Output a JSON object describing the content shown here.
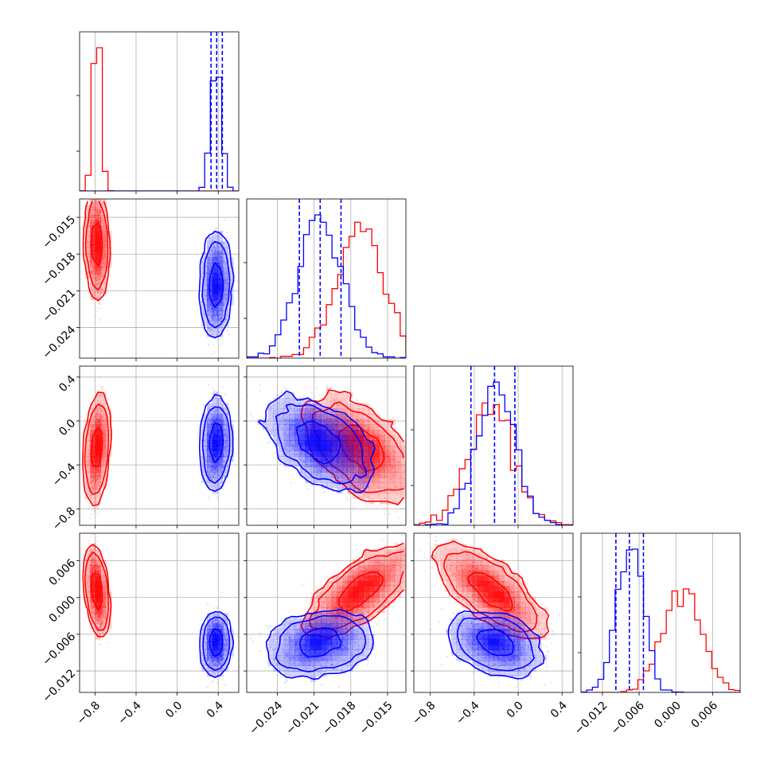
{
  "chart_data": {
    "type": "corner",
    "grid": true,
    "colors": {
      "red": "#ff0000",
      "blue": "#0000ff"
    },
    "parameters": [
      {
        "range": [
          -0.95,
          0.6
        ],
        "ticks": [
          -0.8,
          -0.4,
          0.0,
          0.4
        ],
        "tick_labels": [
          "−0.8",
          "−0.4",
          "0.0",
          "0.4"
        ]
      },
      {
        "range": [
          -0.0265,
          -0.0135
        ],
        "ticks": [
          -0.024,
          -0.021,
          -0.018,
          -0.015
        ],
        "tick_labels": [
          "−0.024",
          "−0.021",
          "−0.018",
          "−0.015"
        ]
      },
      {
        "range": [
          -0.95,
          0.5
        ],
        "ticks": [
          -0.8,
          -0.4,
          0.0,
          0.4
        ],
        "tick_labels": [
          "−0.8",
          "−0.4",
          "0.0",
          "0.4"
        ]
      },
      {
        "range": [
          -0.0155,
          0.0105
        ],
        "ticks": [
          -0.012,
          -0.006,
          0.0,
          0.006
        ],
        "tick_labels": [
          "−0.012",
          "−0.006",
          "0.000",
          "0.006"
        ]
      }
    ],
    "series": [
      {
        "color": "red",
        "mean": [
          -0.78,
          -0.0172,
          -0.25,
          0.001
        ],
        "sd": [
          0.035,
          0.0019,
          0.21,
          0.0032
        ],
        "correlations": [
          [
            0,
            1,
            -0.15
          ],
          [
            0,
            2,
            0.4
          ],
          [
            0,
            3,
            -0.55
          ],
          [
            1,
            2,
            -0.55
          ],
          [
            1,
            3,
            0.7
          ],
          [
            2,
            3,
            -0.75
          ]
        ]
      },
      {
        "color": "blue",
        "mean": [
          0.38,
          -0.0205,
          -0.2,
          -0.0075
        ],
        "sd": [
          0.05,
          0.0018,
          0.17,
          0.0021
        ],
        "correlations": [
          [
            0,
            1,
            0.1
          ],
          [
            0,
            2,
            0.1
          ],
          [
            0,
            3,
            0.1
          ],
          [
            1,
            2,
            -0.45
          ],
          [
            1,
            3,
            0.2
          ],
          [
            2,
            3,
            -0.3
          ]
        ]
      }
    ],
    "quantile_lines": {
      "color": "blue",
      "values": [
        [
          0.33,
          0.385,
          0.44
        ],
        [
          -0.0222,
          -0.0205,
          -0.0188
        ],
        [
          -0.43,
          -0.215,
          -0.03
        ],
        [
          -0.0098,
          -0.0076,
          -0.0053
        ]
      ]
    }
  }
}
